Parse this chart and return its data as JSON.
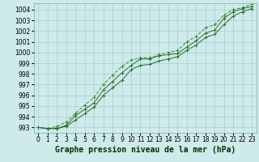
{
  "title": "Graphe pression niveau de la mer (hPa)",
  "hours": [
    0,
    1,
    2,
    3,
    4,
    5,
    6,
    7,
    8,
    9,
    10,
    11,
    12,
    13,
    14,
    15,
    16,
    17,
    18,
    19,
    20,
    21,
    22,
    23
  ],
  "line1": [
    993.0,
    992.9,
    992.9,
    993.2,
    994.1,
    994.7,
    995.3,
    996.5,
    997.3,
    998.1,
    998.8,
    999.4,
    999.4,
    999.7,
    999.8,
    999.9,
    1000.5,
    1001.1,
    1001.8,
    1002.1,
    1003.2,
    1003.8,
    1004.1,
    1004.3
  ],
  "line2": [
    993.0,
    992.9,
    992.9,
    993.1,
    993.7,
    994.3,
    994.9,
    996.0,
    996.7,
    997.4,
    998.4,
    998.8,
    998.9,
    999.2,
    999.4,
    999.6,
    1000.2,
    1000.7,
    1001.4,
    1001.7,
    1002.6,
    1003.4,
    1003.8,
    1004.1
  ],
  "line3": [
    993.0,
    992.9,
    993.1,
    993.5,
    994.3,
    995.1,
    995.8,
    997.0,
    997.9,
    998.7,
    999.3,
    999.5,
    999.5,
    999.8,
    1000.0,
    1000.2,
    1001.0,
    1001.5,
    1002.3,
    1002.6,
    1003.5,
    1004.0,
    1004.2,
    1004.5
  ],
  "line_color": "#2a6e2a",
  "line3_color": "#3a8a3a",
  "bg_color": "#ceeaea",
  "grid_color": "#9dc8c8",
  "title_color": "#003300",
  "ylim": [
    992.5,
    1004.6
  ],
  "yticks": [
    993,
    994,
    995,
    996,
    997,
    998,
    999,
    1000,
    1001,
    1002,
    1003,
    1004
  ],
  "title_fontsize": 7,
  "tick_fontsize": 5.5
}
